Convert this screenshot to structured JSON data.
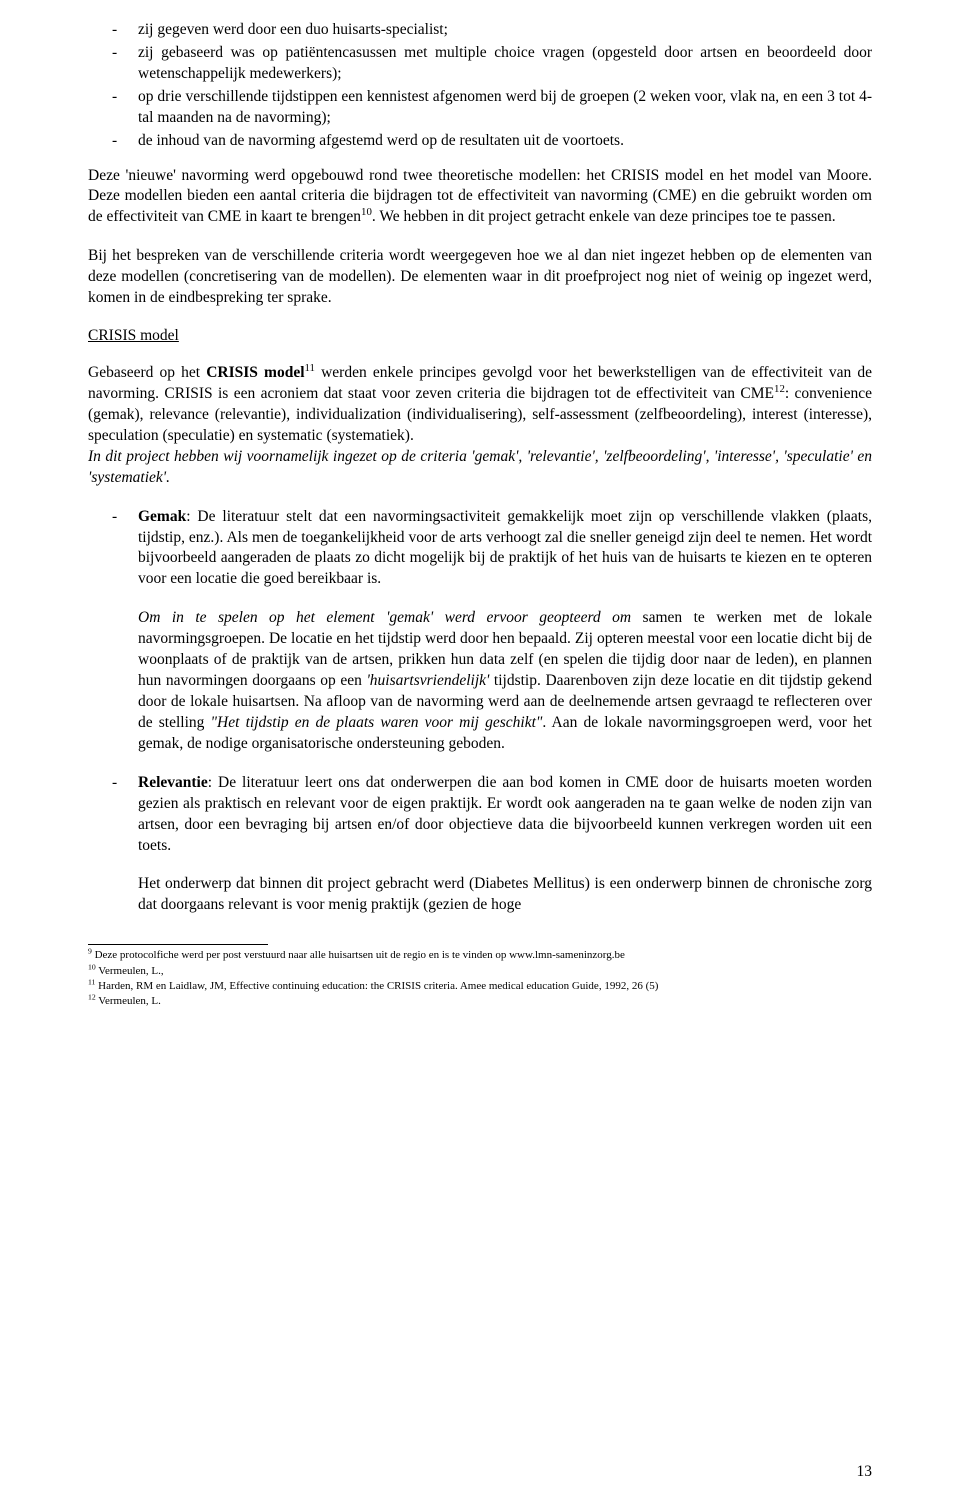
{
  "intro_list": [
    "zij gegeven werd door een duo huisarts-specialist;",
    "zij gebaseerd was op patiëntencasussen met multiple choice vragen (opgesteld door artsen en beoordeeld door wetenschappelijk medewerkers);",
    "op drie verschillende tijdstippen een kennistest afgenomen werd bij de groepen (2 weken voor, vlak na, en een 3 tot 4-tal maanden na de navorming);",
    "de inhoud van de navorming afgestemd werd op de resultaten uit de voortoets."
  ],
  "para1_a": "Deze 'nieuwe' navorming werd opgebouwd rond twee theoretische modellen: het CRISIS model en het model van Moore. Deze modellen bieden een aantal criteria die bijdragen tot de effectiviteit van navorming (CME) en die gebruikt worden om de effectiviteit van CME in kaart te brengen",
  "sup10": "10",
  "para1_b": ". We hebben in dit project getracht enkele van deze principes toe te passen.",
  "para2": "Bij het bespreken van de verschillende criteria wordt weergegeven hoe we al dan niet ingezet hebben op de elementen van deze modellen (concretisering van de modellen). De elementen waar in dit proefproject nog niet of weinig op ingezet werd, komen in de eindbespreking ter sprake.",
  "section_title": "CRISIS model",
  "para3_a": "Gebaseerd op het ",
  "para3_bold": "CRISIS model",
  "sup11": "11",
  "para3_b": " werden enkele principes gevolgd voor het bewerkstelligen van de effectiviteit van de navorming. CRISIS is een acroniem dat staat voor zeven criteria die bijdragen tot de effectiviteit van CME",
  "sup12": "12",
  "para3_c": ": convenience (gemak), relevance (relevantie), individualization (individualisering), self-assessment (zelfbeoordeling), interest (interesse), speculation (speculatie) en systematic (systematiek).",
  "para3_italic": "In dit project hebben wij voornamelijk ingezet op de criteria 'gemak', 'relevantie', 'zelfbeoordeling', 'interesse', 'speculatie' en 'systematiek'.",
  "gemak": {
    "label": "Gemak",
    "text": ": De literatuur stelt dat een navormingsactiviteit gemakkelijk moet zijn op verschillende vlakken (plaats, tijdstip, enz.). Als men de toegankelijkheid voor de arts verhoogt zal die sneller geneigd zijn deel te nemen. Het wordt bijvoorbeeld aangeraden de plaats zo dicht mogelijk bij de praktijk of het huis van de huisarts te kiezen en te opteren voor een locatie die goed bereikbaar is.",
    "sub_i1": "Om in te spelen op het element 'gemak' werd ervoor geopteerd om ",
    "sub_p1": "samen te werken met de lokale navormingsgroepen. De locatie en het tijdstip werd door hen bepaald. Zij opteren meestal voor een locatie dicht bij de woonplaats of de praktijk van de artsen, prikken hun data zelf (en spelen die tijdig door naar de leden), en plannen hun navormingen doorgaans op een ",
    "sub_i2": "'huisartsvriendelijk'",
    "sub_p2": " tijdstip. Daarenboven zijn deze locatie en dit tijdstip gekend door de lokale huisartsen. Na afloop van de navorming werd aan de deelnemende artsen gevraagd te reflecteren over de stelling ",
    "sub_i3": "\"Het tijdstip en de plaats waren voor mij geschikt\"",
    "sub_p3": ". Aan de lokale navormingsgroepen werd, voor het gemak, de nodige organisatorische ondersteuning geboden."
  },
  "relevantie": {
    "label": "Relevantie",
    "text": ": De literatuur leert ons dat onderwerpen die aan bod komen in CME door de huisarts moeten worden gezien als praktisch en relevant voor de eigen praktijk. Er wordt ook aangeraden na te gaan welke de noden zijn van artsen, door een bevraging bij artsen en/of door objectieve data die bijvoorbeeld kunnen verkregen worden uit een toets.",
    "sub": "Het onderwerp dat binnen dit project gebracht werd (Diabetes Mellitus) is een onderwerp binnen de chronische zorg dat doorgaans relevant is voor menig praktijk (gezien de hoge"
  },
  "footnotes": {
    "f9_sup": "9",
    "f9": " Deze protocolfiche werd per post verstuurd naar alle huisartsen uit de regio en is te vinden op www.lmn-sameninzorg.be",
    "f10_sup": "10",
    "f10": " Vermeulen, L.,",
    "f11_sup": "11",
    "f11": " Harden, RM en Laidlaw, JM, Effective continuing education: the CRISIS criteria. Amee medical education Guide, 1992, 26 (5)",
    "f12_sup": "12",
    "f12": " Vermeulen, L."
  },
  "page_number": "13"
}
